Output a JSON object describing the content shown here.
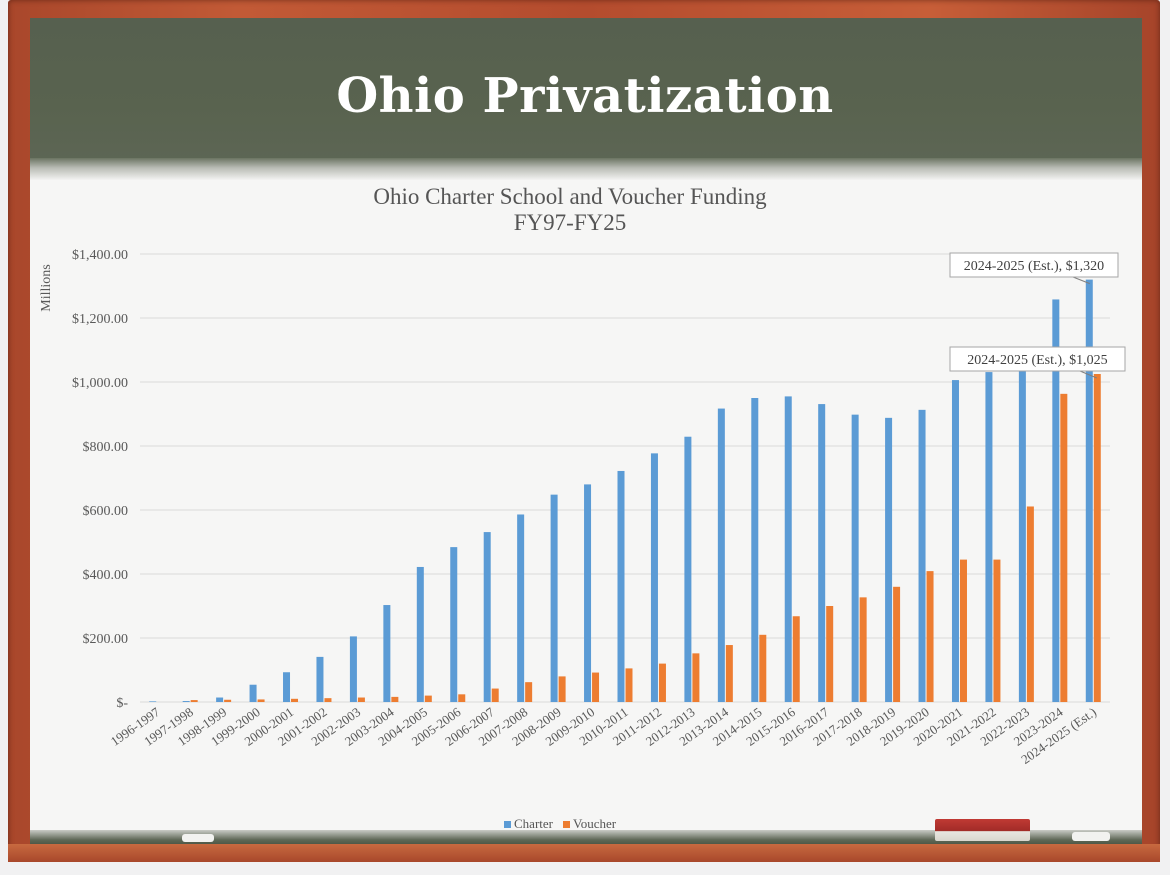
{
  "slide": {
    "title": "Ohio Privatization"
  },
  "colors": {
    "charter": "#5b9bd5",
    "voucher": "#ed7d31",
    "grid": "#d9d9d9",
    "text": "#595959"
  },
  "chart_data": {
    "type": "bar",
    "title_line1": "Ohio Charter School and Voucher Funding",
    "title_line2": "FY97-FY25",
    "ylabel": "Millions",
    "xlabel": "",
    "ylim": [
      0,
      1400
    ],
    "y_ticks": [
      {
        "value": 0,
        "label": "$-"
      },
      {
        "value": 200,
        "label": "$200.00"
      },
      {
        "value": 400,
        "label": "$400.00"
      },
      {
        "value": 600,
        "label": "$600.00"
      },
      {
        "value": 800,
        "label": "$800.00"
      },
      {
        "value": 1000,
        "label": "$1,000.00"
      },
      {
        "value": 1200,
        "label": "$1,200.00"
      },
      {
        "value": 1400,
        "label": "$1,400.00"
      }
    ],
    "categories": [
      "1996-1997",
      "1997-1998",
      "1998-1999",
      "1999-2000",
      "2000-2001",
      "2001-2002",
      "2002-2003",
      "2003-2004",
      "2004-2005",
      "2005-2006",
      "2006-2007",
      "2007-2008",
      "2008-2009",
      "2009-2010",
      "2010-2011",
      "2011-2012",
      "2012-2013",
      "2013-2014",
      "2014-2015",
      "2015-2016",
      "2016-2017",
      "2017-2018",
      "2018-2019",
      "2019-2020",
      "2020-2021",
      "2021-2022",
      "2022-2023",
      "2023-2024",
      "2024-2025 (Est.)"
    ],
    "series": [
      {
        "name": "Charter",
        "values": [
          2,
          3,
          14,
          54,
          93,
          141,
          205,
          303,
          422,
          484,
          531,
          586,
          648,
          680,
          722,
          777,
          829,
          917,
          950,
          955,
          931,
          898,
          888,
          913,
          1006,
          1031,
          1045,
          1258,
          1320
        ]
      },
      {
        "name": "Voucher",
        "values": [
          0,
          6,
          7,
          8,
          10,
          12,
          14,
          16,
          20,
          24,
          42,
          62,
          80,
          92,
          105,
          120,
          152,
          178,
          210,
          268,
          300,
          327,
          360,
          409,
          445,
          445,
          611,
          963,
          1025
        ]
      }
    ],
    "annotations": [
      {
        "text": "2024-2025 (Est.),  $1,320",
        "series": "Charter",
        "category": "2024-2025 (Est.)"
      },
      {
        "text": "2024-2025 (Est.),  $1,025",
        "series": "Voucher",
        "category": "2024-2025 (Est.)"
      }
    ],
    "legend": "bottom"
  }
}
